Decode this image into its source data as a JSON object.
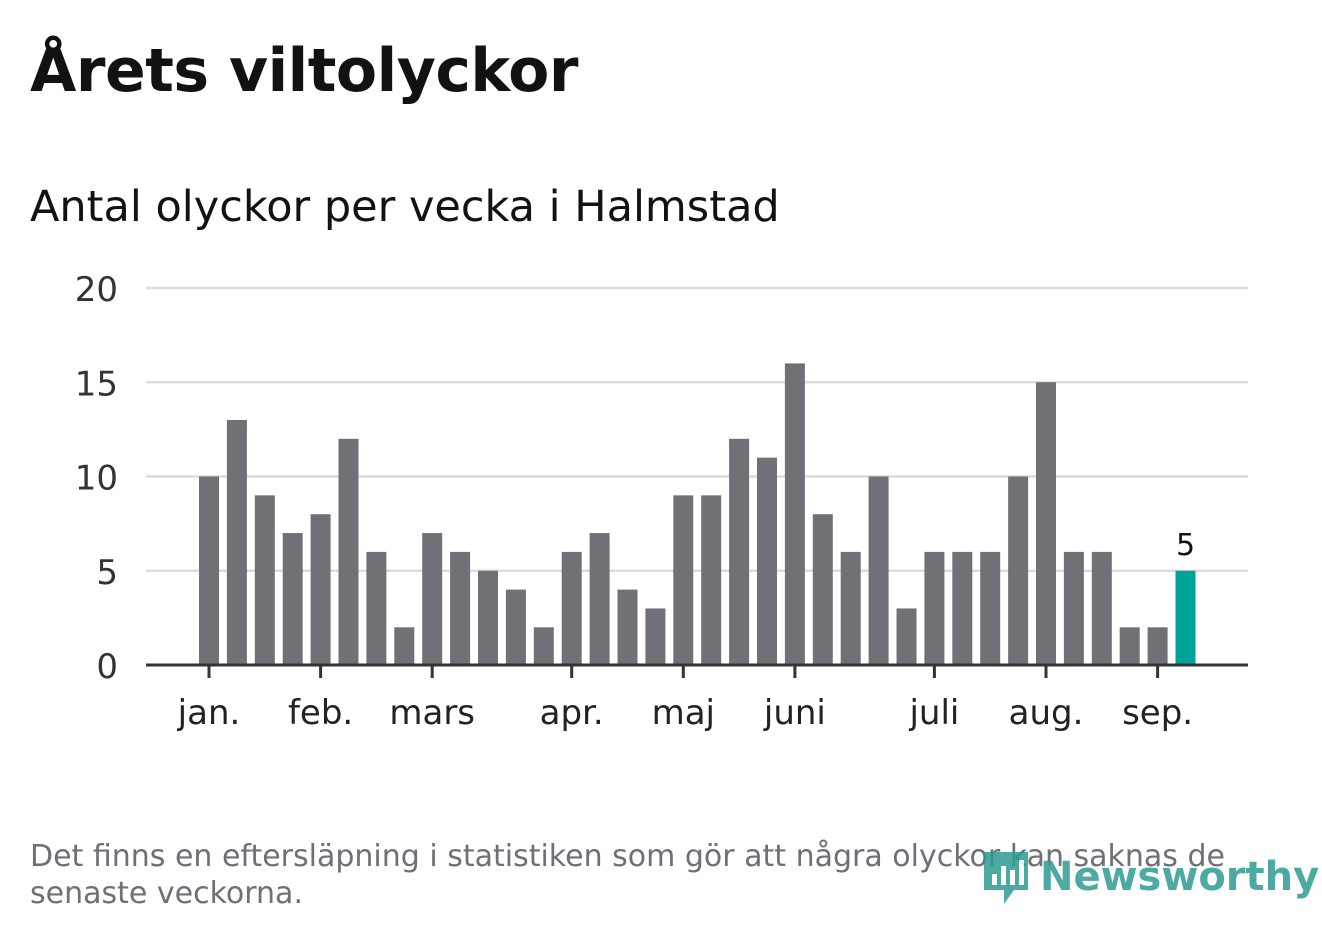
{
  "title": "Årets viltolyckor",
  "subtitle": "Antal olyckor per vecka i Halmstad",
  "footnote": "Det finns en eftersläpning i statistiken som gör att några olyckor kan saknas de senaste veckorna.",
  "brand": "Newsworthy",
  "colors": {
    "bar": "#707077",
    "highlight": "#00a397",
    "grid": "#dcdcdc",
    "axis": "#333333",
    "text": "#333333",
    "brand": "#2f9c94"
  },
  "chart_data": {
    "type": "bar",
    "title": "Antal olyckor per vecka i Halmstad",
    "xlabel": "",
    "ylabel": "",
    "ylim": [
      0,
      20
    ],
    "yticks": [
      0,
      5,
      10,
      15,
      20
    ],
    "grid": true,
    "values": [
      10,
      13,
      9,
      7,
      8,
      12,
      6,
      2,
      7,
      6,
      5,
      4,
      2,
      6,
      7,
      4,
      3,
      9,
      9,
      12,
      11,
      16,
      8,
      6,
      10,
      3,
      6,
      6,
      6,
      10,
      15,
      6,
      6,
      2,
      2,
      5
    ],
    "highlight_index": 35,
    "highlight_label": "5",
    "month_labels": [
      {
        "label": "jan.",
        "bar": 0
      },
      {
        "label": "feb.",
        "bar": 4
      },
      {
        "label": "mars",
        "bar": 8
      },
      {
        "label": "apr.",
        "bar": 13
      },
      {
        "label": "maj",
        "bar": 17
      },
      {
        "label": "juni",
        "bar": 21
      },
      {
        "label": "juli",
        "bar": 26
      },
      {
        "label": "aug.",
        "bar": 30
      },
      {
        "label": "sep.",
        "bar": 34
      }
    ]
  }
}
